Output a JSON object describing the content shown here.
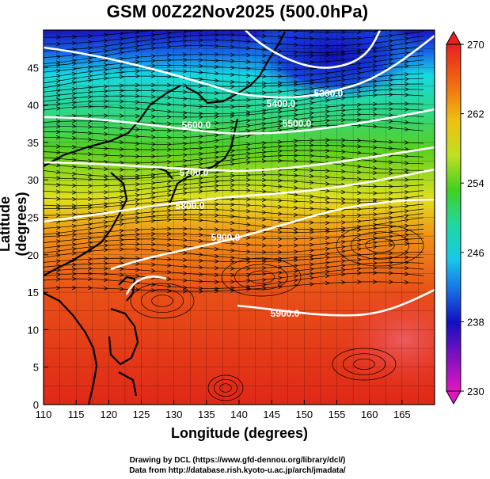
{
  "title": "GSM 00Z22Nov2025 (500.0hPa)",
  "axes": {
    "xlabel": "Longitude (degrees)",
    "ylabel": "Latitude  (degrees)",
    "xlim": [
      110,
      170
    ],
    "ylim": [
      0,
      50
    ],
    "xticks": [
      "110",
      "115",
      "120",
      "125",
      "130",
      "135",
      "140",
      "145",
      "150",
      "155",
      "160",
      "165"
    ],
    "yticks": [
      "0",
      "5",
      "10",
      "15",
      "20",
      "25",
      "30",
      "35",
      "40",
      "45"
    ]
  },
  "colorbar": {
    "ticks": [
      "270",
      "262",
      "254",
      "246",
      "238",
      "230"
    ],
    "range": [
      230,
      270
    ]
  },
  "contours": [
    {
      "label": "5300.0"
    },
    {
      "label": "5400.0"
    },
    {
      "label": "5500.0"
    },
    {
      "label": "5600.0"
    },
    {
      "label": "5700.0"
    },
    {
      "label": "5800.0"
    },
    {
      "label": "5900.0"
    },
    {
      "label": "5900.0"
    }
  ],
  "credits": {
    "line1": "Drawing by DCL (https://www.gfd-dennou.org/library/dcl/)",
    "line2": "Data from http://database.rish.kyoto-u.ac.jp/arch/jmadata/"
  },
  "colors": {
    "cold": "#1010c8",
    "cyan": "#10d8e0",
    "green": "#40d020",
    "yellow": "#e8e020",
    "orange": "#f08010",
    "red": "#e83018",
    "contour": "#ffffff"
  }
}
